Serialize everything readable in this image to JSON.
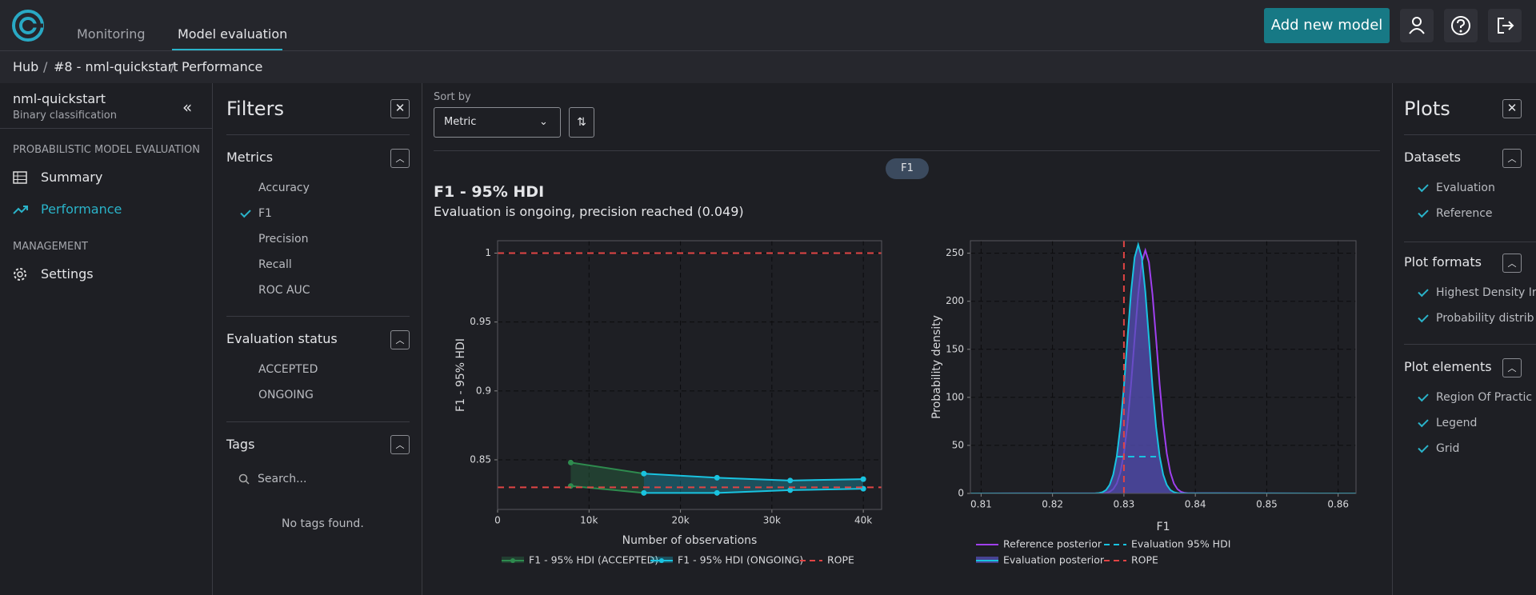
{
  "nav": {
    "tabs": [
      "Monitoring",
      "Model evaluation"
    ],
    "add_model": "Add new model"
  },
  "breadcrumb": [
    "Hub",
    "#8 - nml-quickstart",
    "Performance"
  ],
  "sidebar": {
    "model": "nml-quickstart",
    "model_type": "Binary classification",
    "sections": [
      {
        "title": "PROBABILISTIC MODEL EVALUATION",
        "items": [
          "Summary",
          "Performance"
        ]
      },
      {
        "title": "MANAGEMENT",
        "items": [
          "Settings"
        ]
      }
    ]
  },
  "filters": {
    "title": "Filters",
    "groups": [
      {
        "title": "Metrics",
        "items": [
          "Accuracy",
          "F1",
          "Precision",
          "Recall",
          "ROC AUC"
        ]
      },
      {
        "title": "Evaluation status",
        "items": [
          "ACCEPTED",
          "ONGOING"
        ]
      }
    ],
    "tags": {
      "title": "Tags",
      "placeholder": "Search...",
      "empty": "No tags found."
    }
  },
  "sort": {
    "label": "Sort by",
    "value": "Metric"
  },
  "chip": "F1",
  "result": {
    "title": "F1 - 95% HDI",
    "status": "Evaluation is ongoing, precision reached (0.049)"
  },
  "chart_data": [
    {
      "type": "line",
      "x_label": "Number of observations",
      "y_label": "F1 - 95% HDI",
      "xlim": [
        0,
        42000
      ],
      "ylim": [
        0.814,
        1.009
      ],
      "xticks": [
        0,
        {
          "value": 10000,
          "label": "10k"
        },
        {
          "value": 20000,
          "label": "20k"
        },
        {
          "value": 30000,
          "label": "30k"
        },
        {
          "value": 40000,
          "label": "40k"
        }
      ],
      "yticks": [
        0.85,
        0.9,
        0.95,
        1
      ],
      "grid": true,
      "series": [
        {
          "name": "F1 - 95% HDI (ACCEPTED)",
          "color": "#2e8b4e",
          "x": [
            8000,
            16000
          ],
          "upper": [
            0.848,
            0.84
          ],
          "lower": [
            0.831,
            0.826
          ]
        },
        {
          "name": "F1 - 95% HDI (ONGOING)",
          "color": "#19c3e0",
          "x": [
            16000,
            24000,
            32000,
            40000
          ],
          "upper": [
            0.84,
            0.837,
            0.835,
            0.836
          ],
          "lower": [
            0.826,
            0.826,
            0.828,
            0.829
          ]
        }
      ],
      "rope": {
        "name": "ROPE",
        "color": "#e04444",
        "values": [
          0.83,
          1
        ]
      }
    },
    {
      "type": "density",
      "x_label": "F1",
      "y_label": "Probability density",
      "xlim": [
        0.8085,
        0.8625
      ],
      "ylim": [
        0,
        263
      ],
      "xticks": [
        0.81,
        0.82,
        0.83,
        0.84,
        0.85,
        0.86
      ],
      "yticks": [
        0,
        50,
        100,
        150,
        200,
        250
      ],
      "grid": true,
      "series": [
        {
          "name": "Reference posterior",
          "color": "#a040f0",
          "x": [
            0.8085,
            0.827,
            0.8275,
            0.828,
            0.8285,
            0.829,
            0.8295,
            0.83,
            0.8305,
            0.831,
            0.8315,
            0.832,
            0.8325,
            0.833,
            0.8335,
            0.834,
            0.8345,
            0.835,
            0.8355,
            0.836,
            0.8365,
            0.837,
            0.8375,
            0.838,
            0.8385,
            0.839,
            0.8625
          ],
          "values": [
            0,
            0.2,
            0.6,
            1.7,
            4.4,
            10.3,
            21.8,
            41.7,
            72.4,
            113.6,
            161.2,
            207.1,
            240.7,
            253,
            240.7,
            207.1,
            161.2,
            113.6,
            72.4,
            41.7,
            21.8,
            10.3,
            4.4,
            1.7,
            0.6,
            0.2,
            0
          ]
        },
        {
          "name": "Evaluation posterior",
          "color": "#19c3e0",
          "fill": "#5550b8",
          "x": [
            0.8085,
            0.826,
            0.8265,
            0.827,
            0.8275,
            0.828,
            0.8285,
            0.829,
            0.8295,
            0.83,
            0.8305,
            0.831,
            0.8315,
            0.832,
            0.8325,
            0.833,
            0.8335,
            0.834,
            0.8345,
            0.835,
            0.8355,
            0.836,
            0.8365,
            0.837,
            0.8375,
            0.838,
            0.8625
          ],
          "values": [
            0,
            0.1,
            0.4,
            1.3,
            3.6,
            8.9,
            19.6,
            38.8,
            69.4,
            111.4,
            161.2,
            209.8,
            245.7,
            259,
            245.7,
            209.8,
            161.2,
            111.4,
            69.4,
            38.8,
            19.6,
            8.9,
            3.6,
            1.3,
            0.4,
            0.1,
            0
          ]
        }
      ],
      "hdi": {
        "name": "Evaluation 95% HDI",
        "color": "#19c3e0",
        "values": [
          0.829,
          0.8345
        ]
      },
      "rope": {
        "name": "ROPE",
        "color": "#e04444",
        "values": [
          0.83
        ]
      }
    }
  ],
  "plots": {
    "title": "Plots",
    "groups": [
      {
        "title": "Datasets",
        "items": [
          "Evaluation",
          "Reference"
        ]
      },
      {
        "title": "Plot formats",
        "items": [
          "Highest Density Ir",
          "Probability distrib"
        ]
      },
      {
        "title": "Plot elements",
        "items": [
          "Region Of Practic",
          "Legend",
          "Grid"
        ]
      }
    ]
  }
}
